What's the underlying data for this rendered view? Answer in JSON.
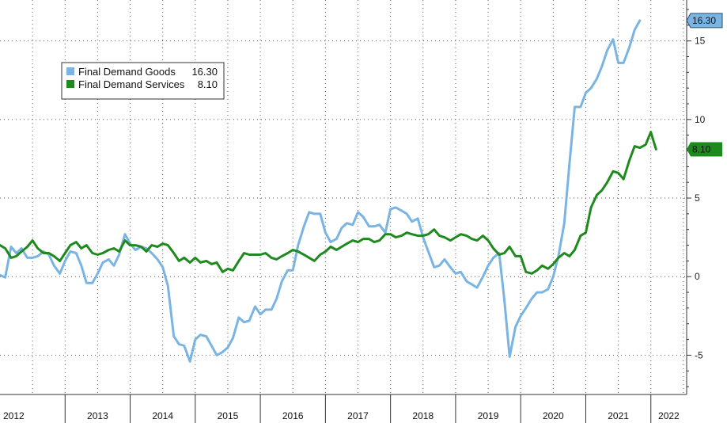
{
  "chart_data": {
    "type": "line",
    "ylim": [
      -7.5,
      17
    ],
    "yticks": [
      -5,
      0,
      5,
      10,
      15
    ],
    "xlim": [
      2012.0,
      2022.55
    ],
    "year_labels": [
      "2012",
      "2013",
      "2014",
      "2015",
      "2016",
      "2017",
      "2018",
      "2019",
      "2020",
      "2021",
      "2022"
    ],
    "grid": true,
    "legend_position": "top-left",
    "series": [
      {
        "name": "Final Demand Goods",
        "last_value_label": "16.30",
        "color": "#7ab4e3",
        "points": [
          [
            2012.0,
            0.1
          ],
          [
            2012.08,
            -0.05
          ],
          [
            2012.17,
            1.9
          ],
          [
            2012.25,
            1.5
          ],
          [
            2012.33,
            1.8
          ],
          [
            2012.42,
            1.2
          ],
          [
            2012.5,
            1.2
          ],
          [
            2012.58,
            1.3
          ],
          [
            2012.67,
            1.6
          ],
          [
            2012.75,
            1.4
          ],
          [
            2012.83,
            0.7
          ],
          [
            2012.92,
            0.2
          ],
          [
            2013.0,
            1.0
          ],
          [
            2013.08,
            1.6
          ],
          [
            2013.17,
            1.5
          ],
          [
            2013.25,
            0.7
          ],
          [
            2013.33,
            -0.4
          ],
          [
            2013.42,
            -0.4
          ],
          [
            2013.5,
            0.2
          ],
          [
            2013.58,
            0.9
          ],
          [
            2013.67,
            1.1
          ],
          [
            2013.75,
            0.7
          ],
          [
            2013.83,
            1.4
          ],
          [
            2013.92,
            2.7
          ],
          [
            2014.0,
            2.1
          ],
          [
            2014.08,
            1.7
          ],
          [
            2014.17,
            1.9
          ],
          [
            2014.25,
            1.8
          ],
          [
            2014.33,
            1.5
          ],
          [
            2014.42,
            1.1
          ],
          [
            2014.5,
            0.6
          ],
          [
            2014.58,
            -0.6
          ],
          [
            2014.67,
            -3.8
          ],
          [
            2014.75,
            -4.3
          ],
          [
            2014.83,
            -4.4
          ],
          [
            2014.92,
            -5.4
          ],
          [
            2015.0,
            -4.0
          ],
          [
            2015.08,
            -3.7
          ],
          [
            2015.17,
            -3.8
          ],
          [
            2015.25,
            -4.4
          ],
          [
            2015.33,
            -5.0
          ],
          [
            2015.42,
            -4.8
          ],
          [
            2015.5,
            -4.5
          ],
          [
            2015.58,
            -3.9
          ],
          [
            2015.67,
            -2.6
          ],
          [
            2015.75,
            -2.9
          ],
          [
            2015.83,
            -2.8
          ],
          [
            2015.92,
            -1.9
          ],
          [
            2016.0,
            -2.4
          ],
          [
            2016.08,
            -2.1
          ],
          [
            2016.17,
            -2.1
          ],
          [
            2016.25,
            -1.4
          ],
          [
            2016.33,
            -0.3
          ],
          [
            2016.42,
            0.4
          ],
          [
            2016.5,
            0.4
          ],
          [
            2016.58,
            2.0
          ],
          [
            2016.67,
            3.2
          ],
          [
            2016.75,
            4.1
          ],
          [
            2016.83,
            4.0
          ],
          [
            2016.92,
            4.0
          ],
          [
            2017.0,
            2.8
          ],
          [
            2017.08,
            2.2
          ],
          [
            2017.17,
            2.4
          ],
          [
            2017.25,
            3.1
          ],
          [
            2017.33,
            3.4
          ],
          [
            2017.42,
            3.3
          ],
          [
            2017.5,
            4.1
          ],
          [
            2017.58,
            3.8
          ],
          [
            2017.67,
            3.2
          ],
          [
            2017.75,
            3.2
          ],
          [
            2017.83,
            3.3
          ],
          [
            2017.92,
            2.8
          ],
          [
            2018.0,
            4.3
          ],
          [
            2018.08,
            4.4
          ],
          [
            2018.17,
            4.2
          ],
          [
            2018.25,
            4.0
          ],
          [
            2018.33,
            3.5
          ],
          [
            2018.42,
            3.7
          ],
          [
            2018.5,
            2.5
          ],
          [
            2018.58,
            1.6
          ],
          [
            2018.67,
            0.6
          ],
          [
            2018.75,
            0.7
          ],
          [
            2018.83,
            1.1
          ],
          [
            2018.92,
            0.6
          ],
          [
            2019.0,
            0.2
          ],
          [
            2019.08,
            0.3
          ],
          [
            2019.17,
            -0.3
          ],
          [
            2019.25,
            -0.5
          ],
          [
            2019.33,
            -0.7
          ],
          [
            2019.42,
            0.0
          ],
          [
            2019.5,
            0.7
          ],
          [
            2019.58,
            1.2
          ],
          [
            2019.67,
            1.5
          ],
          [
            2019.75,
            -1.5
          ],
          [
            2019.83,
            -5.1
          ],
          [
            2019.92,
            -3.2
          ],
          [
            2020.0,
            -2.5
          ],
          [
            2020.08,
            -2.0
          ],
          [
            2020.17,
            -1.4
          ],
          [
            2020.25,
            -1.0
          ],
          [
            2020.33,
            -1.0
          ],
          [
            2020.42,
            -0.8
          ],
          [
            2020.5,
            0.0
          ],
          [
            2020.58,
            1.3
          ],
          [
            2020.67,
            3.4
          ],
          [
            2020.75,
            7.2
          ],
          [
            2020.83,
            10.8
          ],
          [
            2020.92,
            10.8
          ],
          [
            2021.0,
            11.7
          ],
          [
            2021.08,
            12.0
          ],
          [
            2021.17,
            12.6
          ],
          [
            2021.25,
            13.4
          ],
          [
            2021.33,
            14.4
          ],
          [
            2021.42,
            15.1
          ],
          [
            2021.5,
            13.6
          ],
          [
            2021.58,
            13.6
          ],
          [
            2021.67,
            14.6
          ],
          [
            2021.75,
            15.7
          ],
          [
            2021.83,
            16.3
          ]
        ]
      },
      {
        "name": "Final Demand Services",
        "last_value_label": "8.10",
        "color": "#1e8a1e",
        "points": [
          [
            2012.0,
            2.0
          ],
          [
            2012.08,
            1.8
          ],
          [
            2012.17,
            1.2
          ],
          [
            2012.25,
            1.3
          ],
          [
            2012.33,
            1.6
          ],
          [
            2012.42,
            1.9
          ],
          [
            2012.5,
            2.3
          ],
          [
            2012.58,
            1.8
          ],
          [
            2012.67,
            1.5
          ],
          [
            2012.75,
            1.5
          ],
          [
            2012.83,
            1.3
          ],
          [
            2012.92,
            1.0
          ],
          [
            2013.0,
            1.5
          ],
          [
            2013.08,
            2.0
          ],
          [
            2013.17,
            2.2
          ],
          [
            2013.25,
            1.8
          ],
          [
            2013.33,
            2.0
          ],
          [
            2013.42,
            1.5
          ],
          [
            2013.5,
            1.4
          ],
          [
            2013.58,
            1.5
          ],
          [
            2013.67,
            1.7
          ],
          [
            2013.75,
            1.8
          ],
          [
            2013.83,
            1.6
          ],
          [
            2013.92,
            2.3
          ],
          [
            2014.0,
            2.0
          ],
          [
            2014.08,
            2.0
          ],
          [
            2014.17,
            1.9
          ],
          [
            2014.25,
            1.6
          ],
          [
            2014.33,
            2.0
          ],
          [
            2014.42,
            1.9
          ],
          [
            2014.5,
            2.1
          ],
          [
            2014.58,
            2.0
          ],
          [
            2014.67,
            1.5
          ],
          [
            2014.75,
            1.0
          ],
          [
            2014.83,
            1.2
          ],
          [
            2014.92,
            0.9
          ],
          [
            2015.0,
            1.2
          ],
          [
            2015.08,
            0.9
          ],
          [
            2015.17,
            1.0
          ],
          [
            2015.25,
            0.8
          ],
          [
            2015.33,
            0.9
          ],
          [
            2015.42,
            0.3
          ],
          [
            2015.5,
            0.5
          ],
          [
            2015.58,
            0.4
          ],
          [
            2015.67,
            1.0
          ],
          [
            2015.75,
            1.5
          ],
          [
            2015.83,
            1.4
          ],
          [
            2015.92,
            1.4
          ],
          [
            2016.0,
            1.4
          ],
          [
            2016.08,
            1.5
          ],
          [
            2016.17,
            1.2
          ],
          [
            2016.25,
            1.1
          ],
          [
            2016.33,
            1.3
          ],
          [
            2016.42,
            1.5
          ],
          [
            2016.5,
            1.7
          ],
          [
            2016.58,
            1.6
          ],
          [
            2016.67,
            1.4
          ],
          [
            2016.75,
            1.2
          ],
          [
            2016.83,
            1.0
          ],
          [
            2016.92,
            1.4
          ],
          [
            2017.0,
            1.6
          ],
          [
            2017.08,
            1.9
          ],
          [
            2017.17,
            1.7
          ],
          [
            2017.25,
            1.9
          ],
          [
            2017.33,
            2.1
          ],
          [
            2017.42,
            2.3
          ],
          [
            2017.5,
            2.2
          ],
          [
            2017.58,
            2.4
          ],
          [
            2017.67,
            2.4
          ],
          [
            2017.75,
            2.2
          ],
          [
            2017.83,
            2.3
          ],
          [
            2017.92,
            2.7
          ],
          [
            2018.0,
            2.7
          ],
          [
            2018.08,
            2.5
          ],
          [
            2018.17,
            2.6
          ],
          [
            2018.25,
            2.8
          ],
          [
            2018.33,
            2.7
          ],
          [
            2018.42,
            2.6
          ],
          [
            2018.5,
            2.6
          ],
          [
            2018.58,
            2.7
          ],
          [
            2018.67,
            3.0
          ],
          [
            2018.75,
            2.6
          ],
          [
            2018.83,
            2.5
          ],
          [
            2018.92,
            2.3
          ],
          [
            2019.0,
            2.5
          ],
          [
            2019.08,
            2.7
          ],
          [
            2019.17,
            2.6
          ],
          [
            2019.25,
            2.4
          ],
          [
            2019.33,
            2.3
          ],
          [
            2019.42,
            2.6
          ],
          [
            2019.5,
            2.3
          ],
          [
            2019.58,
            1.8
          ],
          [
            2019.67,
            1.4
          ],
          [
            2019.75,
            1.5
          ],
          [
            2019.83,
            1.9
          ],
          [
            2019.92,
            1.3
          ],
          [
            2020.0,
            1.3
          ],
          [
            2020.08,
            0.3
          ],
          [
            2020.17,
            0.2
          ],
          [
            2020.25,
            0.4
          ],
          [
            2020.33,
            0.7
          ],
          [
            2020.42,
            0.5
          ],
          [
            2020.5,
            0.8
          ],
          [
            2020.58,
            1.2
          ],
          [
            2020.67,
            1.5
          ],
          [
            2020.75,
            1.3
          ],
          [
            2020.83,
            1.7
          ],
          [
            2020.92,
            2.6
          ],
          [
            2021.0,
            2.8
          ],
          [
            2021.08,
            4.4
          ],
          [
            2021.17,
            5.2
          ],
          [
            2021.25,
            5.5
          ],
          [
            2021.33,
            6.0
          ],
          [
            2021.42,
            6.7
          ],
          [
            2021.5,
            6.6
          ],
          [
            2021.58,
            6.2
          ],
          [
            2021.67,
            7.4
          ],
          [
            2021.75,
            8.3
          ],
          [
            2021.83,
            8.2
          ],
          [
            2021.92,
            8.4
          ],
          [
            2022.0,
            9.2
          ],
          [
            2022.08,
            8.1
          ]
        ]
      }
    ]
  }
}
